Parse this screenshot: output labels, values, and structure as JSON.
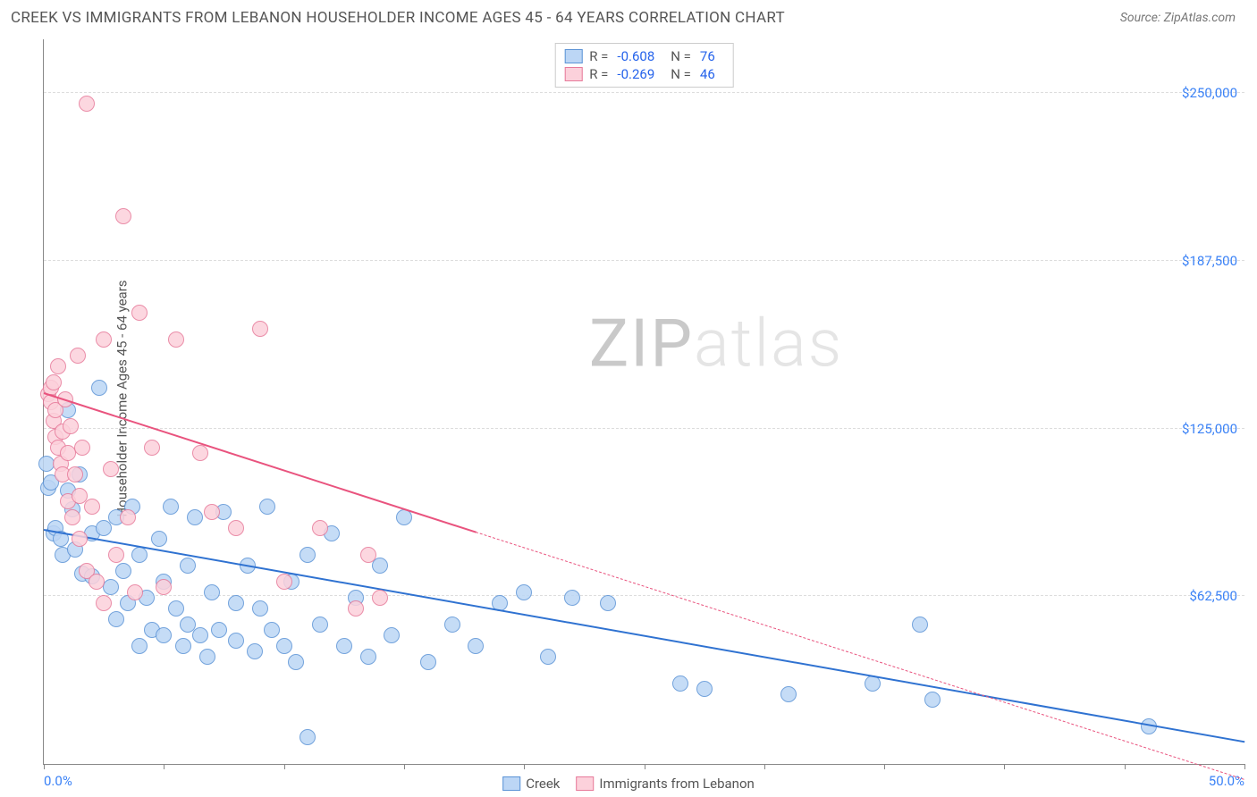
{
  "header": {
    "title": "CREEK VS IMMIGRANTS FROM LEBANON HOUSEHOLDER INCOME AGES 45 - 64 YEARS CORRELATION CHART",
    "source": "Source: ZipAtlas.com"
  },
  "watermark": {
    "zip": "ZIP",
    "rest": "atlas"
  },
  "chart": {
    "type": "scatter",
    "ylabel": "Householder Income Ages 45 - 64 years",
    "plot_bg": "#ffffff",
    "grid_color": "#dddddd",
    "axis_color": "#888888",
    "xlim": [
      0,
      50
    ],
    "ylim": [
      0,
      270000
    ],
    "xticks": [
      0,
      5,
      10,
      15,
      20,
      25,
      30,
      35,
      40,
      45,
      50
    ],
    "xtick_labels": {
      "0": "0.0%",
      "50": "50.0%"
    },
    "yticks": [
      62500,
      125000,
      187500,
      250000
    ],
    "ytick_labels": [
      "$62,500",
      "$125,000",
      "$187,500",
      "$250,000"
    ],
    "marker_radius": 9,
    "marker_border": 1,
    "series": [
      {
        "name": "Creek",
        "fill": "#bcd6f5",
        "stroke": "#5b93d6",
        "line": "#2f72d1",
        "R": "-0.608",
        "N": "76",
        "trend": {
          "x1": 0,
          "y1": 87000,
          "x2": 50,
          "y2": 8000,
          "x_solid_end": 50
        },
        "points": [
          [
            0.2,
            103000
          ],
          [
            0.3,
            105000
          ],
          [
            0.4,
            86000
          ],
          [
            0.5,
            88000
          ],
          [
            0.7,
            84000
          ],
          [
            0.8,
            78000
          ],
          [
            1.0,
            132000
          ],
          [
            1.0,
            102000
          ],
          [
            1.2,
            95000
          ],
          [
            1.3,
            80000
          ],
          [
            1.5,
            108000
          ],
          [
            1.6,
            71000
          ],
          [
            2.0,
            86000
          ],
          [
            2.0,
            70000
          ],
          [
            2.3,
            140000
          ],
          [
            2.5,
            88000
          ],
          [
            2.8,
            66000
          ],
          [
            3.0,
            92000
          ],
          [
            3.0,
            54000
          ],
          [
            3.3,
            72000
          ],
          [
            3.5,
            60000
          ],
          [
            3.7,
            96000
          ],
          [
            4.0,
            78000
          ],
          [
            4.0,
            44000
          ],
          [
            4.3,
            62000
          ],
          [
            4.5,
            50000
          ],
          [
            4.8,
            84000
          ],
          [
            5.0,
            68000
          ],
          [
            5.0,
            48000
          ],
          [
            5.3,
            96000
          ],
          [
            5.5,
            58000
          ],
          [
            5.8,
            44000
          ],
          [
            6.0,
            74000
          ],
          [
            6.0,
            52000
          ],
          [
            6.3,
            92000
          ],
          [
            6.5,
            48000
          ],
          [
            6.8,
            40000
          ],
          [
            7.0,
            64000
          ],
          [
            7.3,
            50000
          ],
          [
            7.5,
            94000
          ],
          [
            8.0,
            60000
          ],
          [
            8.0,
            46000
          ],
          [
            8.5,
            74000
          ],
          [
            8.8,
            42000
          ],
          [
            9.0,
            58000
          ],
          [
            9.3,
            96000
          ],
          [
            9.5,
            50000
          ],
          [
            10.0,
            44000
          ],
          [
            10.3,
            68000
          ],
          [
            10.5,
            38000
          ],
          [
            11.0,
            78000
          ],
          [
            11.0,
            10000
          ],
          [
            11.5,
            52000
          ],
          [
            12.0,
            86000
          ],
          [
            12.5,
            44000
          ],
          [
            13.0,
            62000
          ],
          [
            13.5,
            40000
          ],
          [
            14.0,
            74000
          ],
          [
            14.5,
            48000
          ],
          [
            15.0,
            92000
          ],
          [
            16.0,
            38000
          ],
          [
            17.0,
            52000
          ],
          [
            18.0,
            44000
          ],
          [
            19.0,
            60000
          ],
          [
            20.0,
            64000
          ],
          [
            21.0,
            40000
          ],
          [
            22.0,
            62000
          ],
          [
            23.5,
            60000
          ],
          [
            26.5,
            30000
          ],
          [
            27.5,
            28000
          ],
          [
            31.0,
            26000
          ],
          [
            34.5,
            30000
          ],
          [
            36.5,
            52000
          ],
          [
            37.0,
            24000
          ],
          [
            46.0,
            14000
          ],
          [
            0.1,
            112000
          ]
        ]
      },
      {
        "name": "Immigrants from Lebanon",
        "fill": "#fcd1db",
        "stroke": "#e77a9a",
        "line": "#e9537e",
        "R": "-0.269",
        "N": "46",
        "trend": {
          "x1": 0,
          "y1": 138000,
          "x2": 50,
          "y2": -6000,
          "x_solid_end": 18
        },
        "points": [
          [
            0.2,
            138000
          ],
          [
            0.3,
            140000
          ],
          [
            0.3,
            135000
          ],
          [
            0.4,
            142000
          ],
          [
            0.4,
            128000
          ],
          [
            0.5,
            132000
          ],
          [
            0.5,
            122000
          ],
          [
            0.6,
            148000
          ],
          [
            0.6,
            118000
          ],
          [
            0.7,
            112000
          ],
          [
            0.8,
            124000
          ],
          [
            0.8,
            108000
          ],
          [
            0.9,
            136000
          ],
          [
            1.0,
            116000
          ],
          [
            1.0,
            98000
          ],
          [
            1.1,
            126000
          ],
          [
            1.2,
            92000
          ],
          [
            1.3,
            108000
          ],
          [
            1.4,
            152000
          ],
          [
            1.5,
            100000
          ],
          [
            1.5,
            84000
          ],
          [
            1.6,
            118000
          ],
          [
            1.8,
            72000
          ],
          [
            1.8,
            246000
          ],
          [
            2.0,
            96000
          ],
          [
            2.2,
            68000
          ],
          [
            2.5,
            158000
          ],
          [
            2.5,
            60000
          ],
          [
            2.8,
            110000
          ],
          [
            3.0,
            78000
          ],
          [
            3.3,
            204000
          ],
          [
            3.5,
            92000
          ],
          [
            3.8,
            64000
          ],
          [
            4.0,
            168000
          ],
          [
            4.5,
            118000
          ],
          [
            5.0,
            66000
          ],
          [
            5.5,
            158000
          ],
          [
            6.5,
            116000
          ],
          [
            7.0,
            94000
          ],
          [
            8.0,
            88000
          ],
          [
            9.0,
            162000
          ],
          [
            10.0,
            68000
          ],
          [
            11.5,
            88000
          ],
          [
            13.0,
            58000
          ],
          [
            13.5,
            78000
          ],
          [
            14.0,
            62000
          ]
        ]
      }
    ],
    "legend_top_labels": {
      "R": "R =",
      "N": "N ="
    },
    "legend_bottom": [
      "Creek",
      "Immigrants from Lebanon"
    ]
  }
}
